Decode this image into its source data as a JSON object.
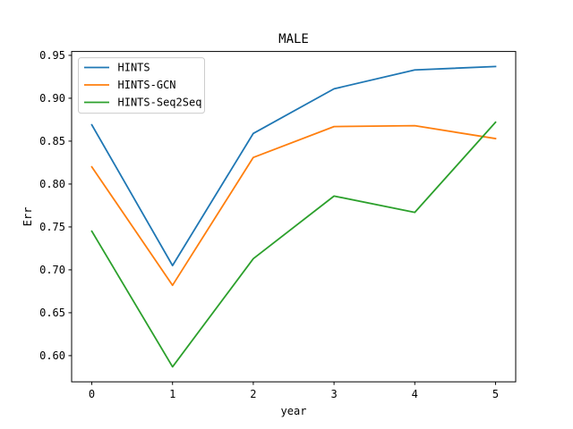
{
  "chart_data": {
    "type": "line",
    "title": "MALE",
    "xlabel": "year",
    "ylabel": "Err",
    "x": [
      0,
      1,
      2,
      3,
      4,
      5
    ],
    "xticks": [
      "0",
      "1",
      "2",
      "3",
      "4",
      "5"
    ],
    "yticks": [
      "0.60",
      "0.65",
      "0.70",
      "0.75",
      "0.80",
      "0.85",
      "0.90",
      "0.95"
    ],
    "xlim": [
      -0.25,
      5.25
    ],
    "ylim": [
      0.5695,
      0.9545
    ],
    "grid": false,
    "legend_position": "top-left",
    "series": [
      {
        "name": "HINTS",
        "color": "#1f77b4",
        "values": [
          0.869,
          0.705,
          0.859,
          0.911,
          0.933,
          0.937
        ]
      },
      {
        "name": "HINTS-GCN",
        "color": "#ff7f0e",
        "values": [
          0.82,
          0.682,
          0.831,
          0.867,
          0.868,
          0.853
        ]
      },
      {
        "name": "HINTS-Seq2Seq",
        "color": "#2ca02c",
        "values": [
          0.745,
          0.587,
          0.713,
          0.786,
          0.767,
          0.872
        ]
      }
    ]
  }
}
